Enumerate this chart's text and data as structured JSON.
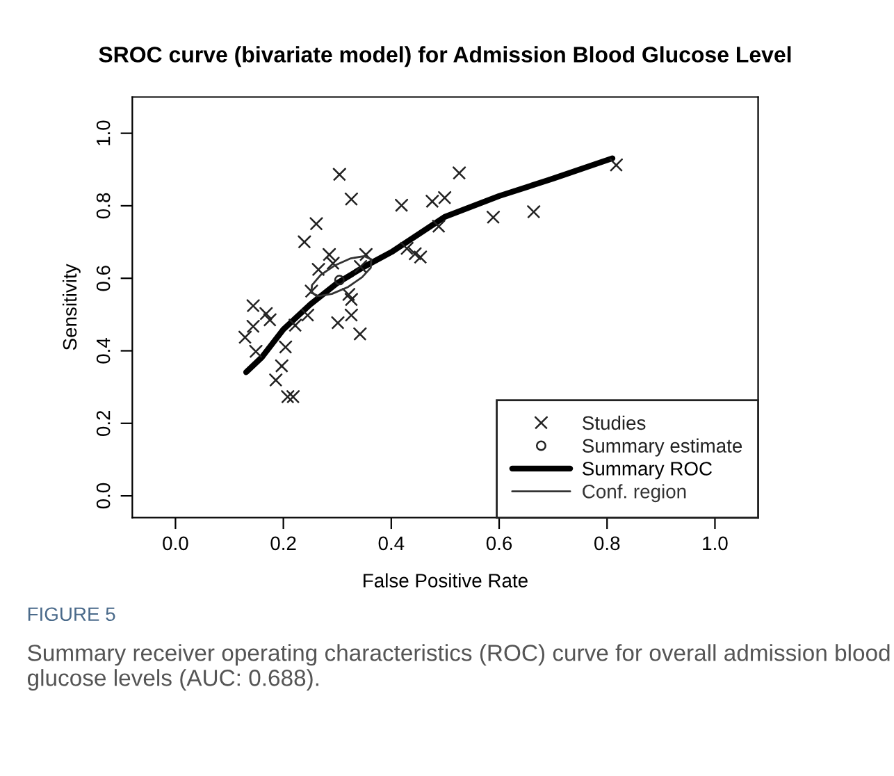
{
  "chart_data": {
    "type": "scatter",
    "title": "SROC curve (bivariate model) for Admission Blood Glucose Level",
    "xlabel": "False Positive Rate",
    "ylabel": "Sensitivity",
    "xlim": [
      -0.08,
      1.08
    ],
    "xticks": [
      {
        "value": 0,
        "label": "0.0"
      },
      {
        "value": 0.2,
        "label": "0.2"
      },
      {
        "value": 0.4,
        "label": "0.4"
      },
      {
        "value": 0.6,
        "label": "0.6"
      },
      {
        "value": 0.8,
        "label": "0.8"
      },
      {
        "value": 1,
        "label": "1.0"
      }
    ],
    "ylim": [
      -0.06,
      1.1
    ],
    "yticks": [
      {
        "value": 0,
        "label": "0.0"
      },
      {
        "value": 0.2,
        "label": "0.2"
      },
      {
        "value": 0.4,
        "label": "0.4"
      },
      {
        "value": 0.6,
        "label": "0.6"
      },
      {
        "value": 0.8,
        "label": "0.8"
      },
      {
        "value": 1,
        "label": "1.0"
      }
    ],
    "grid": false,
    "legend": "bottom right",
    "series": [
      {
        "name": "Studies",
        "marker": "cross",
        "color": "#222222",
        "x": [
          0.304,
          0.326,
          0.419,
          0.476,
          0.499,
          0.261,
          0.239,
          0.285,
          0.292,
          0.265,
          0.353,
          0.343,
          0.429,
          0.444,
          0.454,
          0.488,
          0.252,
          0.321,
          0.326,
          0.326,
          0.301,
          0.342,
          0.245,
          0.222,
          0.144,
          0.144,
          0.129,
          0.149,
          0.168,
          0.175,
          0.204,
          0.197,
          0.186,
          0.208,
          0.218,
          0.526,
          0.589,
          0.664,
          0.817
        ],
        "values": [
          0.886,
          0.818,
          0.801,
          0.812,
          0.822,
          0.75,
          0.7,
          0.665,
          0.641,
          0.624,
          0.665,
          0.632,
          0.682,
          0.667,
          0.658,
          0.743,
          0.564,
          0.555,
          0.541,
          0.498,
          0.477,
          0.446,
          0.498,
          0.47,
          0.524,
          0.467,
          0.437,
          0.398,
          0.502,
          0.485,
          0.41,
          0.358,
          0.319,
          0.273,
          0.273,
          0.89,
          0.768,
          0.783,
          0.912
        ]
      },
      {
        "name": "Summary estimate",
        "marker": "circle",
        "color": "#222222",
        "x": [
          0.304
        ],
        "values": [
          0.595
        ]
      },
      {
        "name": "Summary ROC",
        "type": "line",
        "line_style": "solid",
        "color": "#000000",
        "x": [
          0.131,
          0.16,
          0.2,
          0.25,
          0.3,
          0.35,
          0.4,
          0.5,
          0.6,
          0.7,
          0.81
        ],
        "values": [
          0.341,
          0.382,
          0.459,
          0.528,
          0.587,
          0.632,
          0.672,
          0.77,
          0.827,
          0.875,
          0.931
        ]
      },
      {
        "name": "Conf. region",
        "type": "line",
        "line_style": "solid",
        "color": "#333333",
        "x": [
          0.252,
          0.253,
          0.269,
          0.296,
          0.325,
          0.35,
          0.363
        ],
        "values": [
          0.56,
          0.581,
          0.609,
          0.636,
          0.655,
          0.661,
          0.652
        ]
      },
      {
        "type": "line",
        "line_style": "solid",
        "color": "#333333",
        "x": [
          0.252,
          0.265,
          0.29,
          0.32,
          0.346,
          0.362,
          0.363
        ],
        "values": [
          0.56,
          0.551,
          0.557,
          0.576,
          0.603,
          0.629,
          0.652
        ]
      }
    ],
    "annotations": [
      "FIGURE 5",
      "Summary receiver operating characteristics (ROC) curve for overall admission blood glucose levels (AUC: 0.688)."
    ]
  }
}
